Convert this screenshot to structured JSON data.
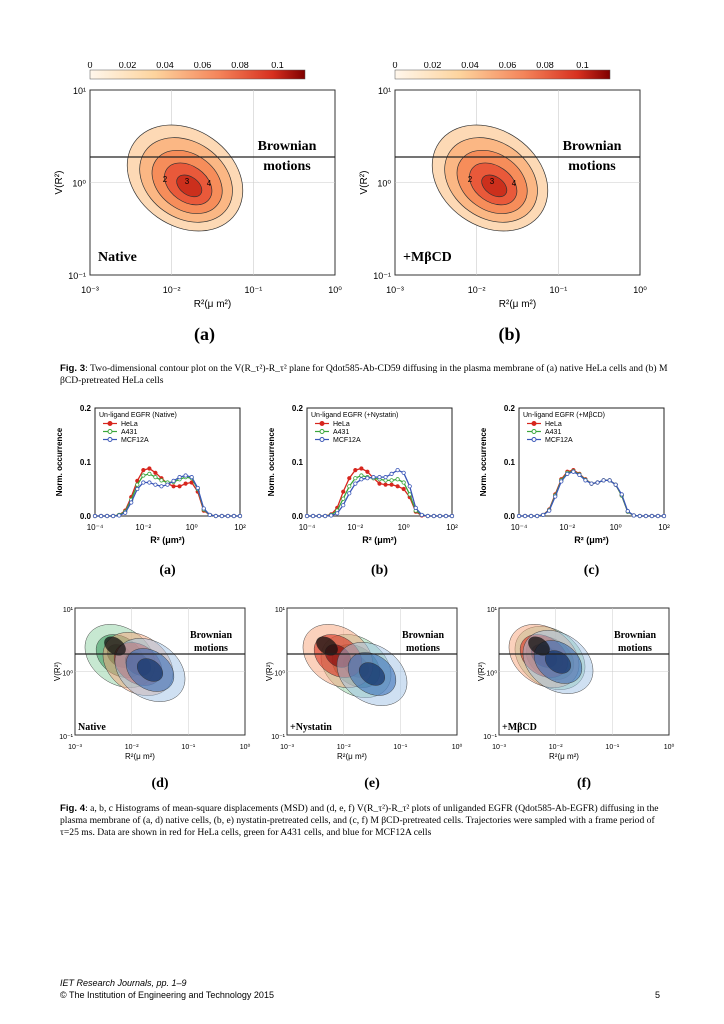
{
  "fig3": {
    "colorbar_ticks": [
      "0",
      "0.02",
      "0.04",
      "0.06",
      "0.08",
      "0.1"
    ],
    "ylabel": "V(R²)",
    "xlabel": "R²(μ m²)",
    "y_ticks": [
      "10¹",
      "10⁰",
      "10⁻¹"
    ],
    "x_ticks": [
      "10⁻³",
      "10⁻²",
      "10⁻¹",
      "10⁰"
    ],
    "region_label": "Brownian",
    "region_label2": "motions",
    "panels": [
      {
        "condition": "Native",
        "letter": "(a)"
      },
      {
        "condition": "+MβCD",
        "letter": "(b)"
      }
    ],
    "contour_numbers": [
      "2",
      "3",
      "4"
    ]
  },
  "fig3_caption": {
    "label": "Fig. 3",
    "text": ": Two-dimensional contour plot on the V(R_τ²)-R_τ² plane for Qdot585-Ab-CD59 diffusing in the plasma membrane of (a) native HeLa cells and (b) M βCD-pretreated HeLa cells"
  },
  "fig4_top": {
    "ylabel": "Norm. occurrence",
    "xlabel": "R² (μm²)",
    "y_ticks": [
      "0.2",
      "0.1",
      "0.0"
    ],
    "x_ticks": [
      "10⁻⁴",
      "10⁻²",
      "10⁰",
      "10²"
    ],
    "legend": [
      "HeLa",
      "A431",
      "MCF12A"
    ],
    "colors": {
      "HeLa": "#d7261e",
      "A431": "#3aa63c",
      "MCF12A": "#3a56b8"
    },
    "panels": [
      {
        "title": "Un-ligand EGFR (Native)",
        "letter": "(a)"
      },
      {
        "title": "Un-ligand EGFR (+Nystatin)",
        "letter": "(b)"
      },
      {
        "title": "Un-ligand EGFR (+MβCD)",
        "letter": "(c)"
      }
    ]
  },
  "chart_data": [
    {
      "type": "line",
      "title": "Un-ligand EGFR (Native)",
      "xlabel": "R² (μm²)",
      "ylabel": "Norm. occurrence",
      "x_scale": "log",
      "xlim": [
        0.0001,
        100
      ],
      "ylim": [
        0,
        0.2
      ],
      "x": [
        0.0001,
        0.000178,
        0.000316,
        0.000562,
        0.001,
        0.00178,
        0.00316,
        0.00562,
        0.01,
        0.0178,
        0.0316,
        0.0562,
        0.1,
        0.178,
        0.316,
        0.562,
        1,
        1.78,
        3.16,
        5.62,
        10,
        17.8,
        31.6,
        56.2,
        100
      ],
      "series": [
        {
          "name": "HeLa",
          "values": [
            0,
            0,
            0,
            0,
            0.002,
            0.01,
            0.035,
            0.065,
            0.085,
            0.088,
            0.08,
            0.07,
            0.06,
            0.055,
            0.055,
            0.06,
            0.062,
            0.045,
            0.01,
            0.002,
            0,
            0,
            0,
            0,
            0
          ]
        },
        {
          "name": "A431",
          "values": [
            0,
            0,
            0,
            0,
            0.002,
            0.008,
            0.03,
            0.058,
            0.075,
            0.078,
            0.072,
            0.066,
            0.062,
            0.063,
            0.068,
            0.072,
            0.07,
            0.05,
            0.012,
            0.002,
            0,
            0,
            0,
            0,
            0
          ]
        },
        {
          "name": "MCF12A",
          "values": [
            0,
            0,
            0,
            0,
            0.001,
            0.006,
            0.025,
            0.05,
            0.062,
            0.062,
            0.058,
            0.055,
            0.058,
            0.065,
            0.072,
            0.075,
            0.072,
            0.052,
            0.014,
            0.002,
            0,
            0,
            0,
            0,
            0
          ]
        }
      ]
    },
    {
      "type": "line",
      "title": "Un-ligand EGFR (+Nystatin)",
      "xlabel": "R² (μm²)",
      "ylabel": "Norm. occurrence",
      "x_scale": "log",
      "xlim": [
        0.0001,
        100
      ],
      "ylim": [
        0,
        0.2
      ],
      "x": [
        0.0001,
        0.000178,
        0.000316,
        0.000562,
        0.001,
        0.00178,
        0.00316,
        0.00562,
        0.01,
        0.0178,
        0.0316,
        0.0562,
        0.1,
        0.178,
        0.316,
        0.562,
        1,
        1.78,
        3.16,
        5.62,
        10,
        17.8,
        31.6,
        56.2,
        100
      ],
      "series": [
        {
          "name": "HeLa",
          "values": [
            0,
            0,
            0,
            0,
            0.003,
            0.015,
            0.045,
            0.07,
            0.085,
            0.088,
            0.082,
            0.07,
            0.06,
            0.058,
            0.058,
            0.055,
            0.05,
            0.035,
            0.008,
            0.001,
            0,
            0,
            0,
            0,
            0
          ]
        },
        {
          "name": "A431",
          "values": [
            0,
            0,
            0,
            0,
            0.002,
            0.01,
            0.032,
            0.055,
            0.07,
            0.075,
            0.072,
            0.07,
            0.068,
            0.066,
            0.066,
            0.068,
            0.062,
            0.04,
            0.01,
            0.002,
            0,
            0,
            0,
            0,
            0
          ]
        },
        {
          "name": "MCF12A",
          "values": [
            0,
            0,
            0,
            0,
            0.001,
            0.005,
            0.02,
            0.042,
            0.06,
            0.068,
            0.07,
            0.072,
            0.072,
            0.072,
            0.078,
            0.085,
            0.08,
            0.055,
            0.015,
            0.002,
            0,
            0,
            0,
            0,
            0
          ]
        }
      ]
    },
    {
      "type": "line",
      "title": "Un-ligand EGFR (+MβCD)",
      "xlabel": "R² (μm²)",
      "ylabel": "Norm. occurrence",
      "x_scale": "log",
      "xlim": [
        0.0001,
        100
      ],
      "ylim": [
        0,
        0.2
      ],
      "x": [
        0.0001,
        0.000178,
        0.000316,
        0.000562,
        0.001,
        0.00178,
        0.00316,
        0.00562,
        0.01,
        0.0178,
        0.0316,
        0.0562,
        0.1,
        0.178,
        0.316,
        0.562,
        1,
        1.78,
        3.16,
        5.62,
        10,
        17.8,
        31.6,
        56.2,
        100
      ],
      "series": [
        {
          "name": "HeLa",
          "values": [
            0,
            0,
            0,
            0,
            0.002,
            0.012,
            0.04,
            0.068,
            0.082,
            0.085,
            0.078,
            0.068,
            0.06,
            0.062,
            0.066,
            0.066,
            0.058,
            0.038,
            0.008,
            0.001,
            0,
            0,
            0,
            0,
            0
          ]
        },
        {
          "name": "A431",
          "values": [
            0,
            0,
            0,
            0,
            0.002,
            0.011,
            0.038,
            0.066,
            0.08,
            0.083,
            0.077,
            0.067,
            0.06,
            0.062,
            0.066,
            0.066,
            0.058,
            0.038,
            0.008,
            0.001,
            0,
            0,
            0,
            0,
            0
          ]
        },
        {
          "name": "MCF12A",
          "values": [
            0,
            0,
            0,
            0,
            0.002,
            0.01,
            0.036,
            0.064,
            0.078,
            0.082,
            0.076,
            0.066,
            0.06,
            0.062,
            0.066,
            0.066,
            0.058,
            0.04,
            0.009,
            0.001,
            0,
            0,
            0,
            0,
            0
          ]
        }
      ]
    }
  ],
  "fig4_bottom": {
    "ylabel": "V(R²)",
    "xlabel": "R²(μ m²)",
    "y_ticks": [
      "10¹",
      "10⁰",
      "10⁻¹"
    ],
    "x_ticks": [
      "10⁻³",
      "10⁻²",
      "10⁻¹",
      "10⁰"
    ],
    "region_label": "Brownian",
    "region_label2": "motions",
    "panels": [
      {
        "condition": "Native",
        "letter": "(d)"
      },
      {
        "condition": "+Nystatin",
        "letter": "(e)"
      },
      {
        "condition": "+MβCD",
        "letter": "(f)"
      }
    ]
  },
  "fig4_caption": {
    "label": "Fig. 4",
    "text": ": a, b, c Histograms of mean-square displacements (MSD) and (d, e, f) V(R_τ²)-R_τ² plots of unliganded EGFR (Qdot585-Ab-EGFR) diffusing in the plasma membrane of (a, d) native cells, (b, e) nystatin-pretreated cells, and (c, f) M βCD-pretreated cells. Trajectories were sampled with a frame period of τ=25 ms. Data are shown in red for HeLa cells, green for A431 cells, and blue for MCF12A cells"
  },
  "footer": {
    "journal": "IET Research Journals, pp. 1–9",
    "copyright": "© The Institution of Engineering and Technology 2015",
    "page": "5"
  }
}
